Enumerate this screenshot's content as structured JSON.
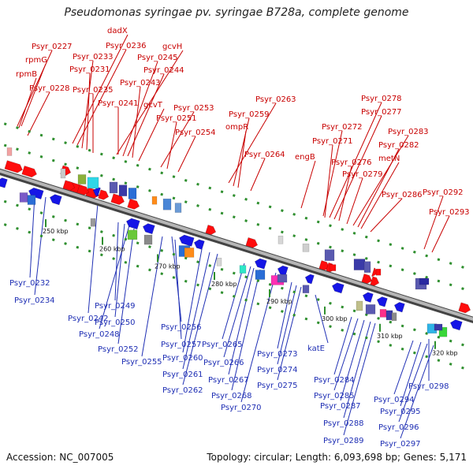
{
  "title": "Pseudomonas syringae pv. syringae B728a, complete genome",
  "footer": {
    "accession": "Accession: NC_007005",
    "summary": "Topology: circular; Length: 6,093,698 bp; Genes: 5,171"
  },
  "colors": {
    "top_label": "#c80000",
    "bottom_label": "#1f2fb4",
    "backbone": "#9a9a9a",
    "ticks": "#2f8f2f"
  },
  "top_labels": [
    {
      "text": "Psyr_0227"
    },
    {
      "text": "rpmG"
    },
    {
      "text": "rpmB"
    },
    {
      "text": "Psyr_0228"
    },
    {
      "text": "dadX"
    },
    {
      "text": "Psyr_0236"
    },
    {
      "text": "Psyr_0233"
    },
    {
      "text": "Psyr_0231"
    },
    {
      "text": "Psyr_0235"
    },
    {
      "text": "gcvH"
    },
    {
      "text": "Psyr_0245"
    },
    {
      "text": "Psyr_0244"
    },
    {
      "text": "Psyr_0243"
    },
    {
      "text": "Psyr_0241"
    },
    {
      "text": "gcvT"
    },
    {
      "text": "Psyr_0253"
    },
    {
      "text": "Psyr_0251"
    },
    {
      "text": "Psyr_0254"
    },
    {
      "text": "Psyr_0263"
    },
    {
      "text": "Psyr_0259"
    },
    {
      "text": "ompR"
    },
    {
      "text": "Psyr_0264"
    },
    {
      "text": "Psyr_0278"
    },
    {
      "text": "Psyr_0277"
    },
    {
      "text": "Psyr_0272"
    },
    {
      "text": "Psyr_0271"
    },
    {
      "text": "engB"
    },
    {
      "text": "Psyr_0283"
    },
    {
      "text": "Psyr_0282"
    },
    {
      "text": "metN"
    },
    {
      "text": "Psyr_0276"
    },
    {
      "text": "Psyr_0279"
    },
    {
      "text": "Psyr_0286"
    },
    {
      "text": "Psyr_0292"
    },
    {
      "text": "Psyr_0293"
    }
  ],
  "bottom_labels": [
    {
      "text": "Psyr_0232"
    },
    {
      "text": "Psyr_0234"
    },
    {
      "text": "Psyr_0242"
    },
    {
      "text": "Psyr_0249"
    },
    {
      "text": "Psyr_0250"
    },
    {
      "text": "Psyr_0248"
    },
    {
      "text": "Psyr_0252"
    },
    {
      "text": "Psyr_0256"
    },
    {
      "text": "Psyr_0257"
    },
    {
      "text": "Psyr_0255"
    },
    {
      "text": "Psyr_0260"
    },
    {
      "text": "Psyr_0261"
    },
    {
      "text": "Psyr_0262"
    },
    {
      "text": "Psyr_0265"
    },
    {
      "text": "Psyr_0266"
    },
    {
      "text": "Psyr_0267"
    },
    {
      "text": "Psyr_0268"
    },
    {
      "text": "Psyr_0270"
    },
    {
      "text": "Psyr_0273"
    },
    {
      "text": "Psyr_0274"
    },
    {
      "text": "Psyr_0275"
    },
    {
      "text": "katE"
    },
    {
      "text": "Psyr_0284"
    },
    {
      "text": "Psyr_0285"
    },
    {
      "text": "Psyr_0287"
    },
    {
      "text": "Psyr_0288"
    },
    {
      "text": "Psyr_0289"
    },
    {
      "text": "Psyr_0294"
    },
    {
      "text": "Psyr_0298"
    },
    {
      "text": "Psyr_0295"
    },
    {
      "text": "Psyr_0296"
    },
    {
      "text": "Psyr_0297"
    }
  ],
  "ticks": [
    {
      "text": "250 kbp"
    },
    {
      "text": "260 kbp"
    },
    {
      "text": "270 kbp"
    },
    {
      "text": "280 kbp"
    },
    {
      "text": "290 kbp"
    },
    {
      "text": "300 kbp"
    },
    {
      "text": "310 kbp"
    },
    {
      "text": "320 kbp"
    }
  ]
}
